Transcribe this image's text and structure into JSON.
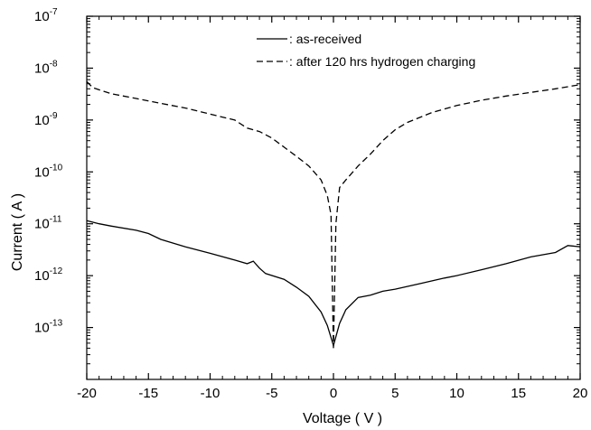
{
  "chart_data": {
    "type": "line",
    "xlabel": "Voltage ( V )",
    "ylabel": "Current ( A )",
    "xlim": [
      -20,
      20
    ],
    "ylim_exponents": [
      -14,
      -7
    ],
    "yscale": "log",
    "xticks": [
      -20,
      -15,
      -10,
      -5,
      0,
      5,
      10,
      15,
      20
    ],
    "xtick_labels": [
      "-20",
      "-15",
      "-10",
      "-5",
      "0",
      "5",
      "10",
      "15",
      "20"
    ],
    "yticks": [
      {
        "base": "10",
        "exp": "-13",
        "value": 1e-13
      },
      {
        "base": "10",
        "exp": "-12",
        "value": 1e-12
      },
      {
        "base": "10",
        "exp": "-11",
        "value": 1e-11
      },
      {
        "base": "10",
        "exp": "-10",
        "value": 1e-10
      },
      {
        "base": "10",
        "exp": "-9",
        "value": 1e-09
      },
      {
        "base": "10",
        "exp": "-8",
        "value": 1e-08
      },
      {
        "base": "10",
        "exp": "-7",
        "value": 1e-07
      }
    ],
    "legend_position": "top-right",
    "series": [
      {
        "name": ": as-received",
        "style": "solid",
        "color": "#000000",
        "points": [
          [
            -20,
            1.15e-11
          ],
          [
            -19,
            1e-11
          ],
          [
            -18,
            9e-12
          ],
          [
            -16,
            7.5e-12
          ],
          [
            -15,
            6.5e-12
          ],
          [
            -14,
            5e-12
          ],
          [
            -12,
            3.6e-12
          ],
          [
            -10,
            2.7e-12
          ],
          [
            -8,
            2e-12
          ],
          [
            -7,
            1.7e-12
          ],
          [
            -6.5,
            1.9e-12
          ],
          [
            -6,
            1.4e-12
          ],
          [
            -5.5,
            1.1e-12
          ],
          [
            -4,
            8.5e-13
          ],
          [
            -3,
            6e-13
          ],
          [
            -2,
            4e-13
          ],
          [
            -1,
            2e-13
          ],
          [
            -0.5,
            1.1e-13
          ],
          [
            0,
            4.5e-14
          ],
          [
            0.5,
            1.2e-13
          ],
          [
            1,
            2.2e-13
          ],
          [
            2,
            3.8e-13
          ],
          [
            3,
            4.2e-13
          ],
          [
            4,
            5e-13
          ],
          [
            5,
            5.5e-13
          ],
          [
            7,
            7e-13
          ],
          [
            9,
            9e-13
          ],
          [
            10,
            1e-12
          ],
          [
            12,
            1.3e-12
          ],
          [
            14,
            1.7e-12
          ],
          [
            16,
            2.3e-12
          ],
          [
            18,
            2.8e-12
          ],
          [
            19,
            3.8e-12
          ],
          [
            20,
            3.6e-12
          ]
        ]
      },
      {
        "name": ": after 120 hrs hydrogen charging",
        "style": "dashed",
        "color": "#000000",
        "points": [
          [
            -20,
            5.5e-09
          ],
          [
            -19.5,
            4.2e-09
          ],
          [
            -18,
            3.2e-09
          ],
          [
            -16,
            2.6e-09
          ],
          [
            -14,
            2.1e-09
          ],
          [
            -12,
            1.7e-09
          ],
          [
            -10,
            1.3e-09
          ],
          [
            -8,
            1e-09
          ],
          [
            -7,
            7e-10
          ],
          [
            -6,
            6e-10
          ],
          [
            -5,
            4.5e-10
          ],
          [
            -4,
            3e-10
          ],
          [
            -3,
            2e-10
          ],
          [
            -2,
            1.3e-10
          ],
          [
            -1,
            7e-11
          ],
          [
            -0.5,
            3.5e-11
          ],
          [
            -0.2,
            1.5e-11
          ],
          [
            0,
            4e-14
          ],
          [
            0.2,
            1e-11
          ],
          [
            0.5,
            5e-11
          ],
          [
            1,
            7e-11
          ],
          [
            2,
            1.3e-10
          ],
          [
            3,
            2.2e-10
          ],
          [
            4,
            4e-10
          ],
          [
            5,
            6.5e-10
          ],
          [
            6,
            9e-10
          ],
          [
            8,
            1.4e-09
          ],
          [
            10,
            1.9e-09
          ],
          [
            12,
            2.4e-09
          ],
          [
            14,
            2.9e-09
          ],
          [
            16,
            3.4e-09
          ],
          [
            18,
            4e-09
          ],
          [
            20,
            4.8e-09
          ]
        ]
      }
    ]
  }
}
